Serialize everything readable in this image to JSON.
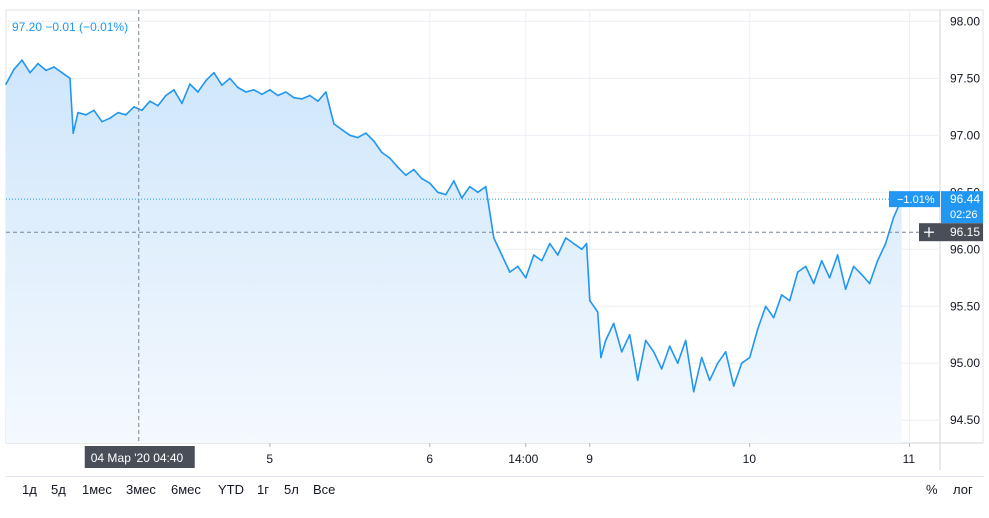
{
  "header": {
    "readout": "97.20 −0.01 (−0.01%)"
  },
  "colors": {
    "line": "#2196f3",
    "fill_top": "#cfe6fb",
    "fill_bottom": "#f4f9fe",
    "grid": "#eceff4",
    "axis_text": "#131722",
    "last_badge": "#2196f3",
    "cursor_badge": "#4a4e59"
  },
  "range_buttons": [
    "1д",
    "5д",
    "1мес",
    "3мес",
    "6мес",
    "YTD",
    "1г",
    "5л",
    "Все"
  ],
  "right_buttons": {
    "percent": "%",
    "log": "лог"
  },
  "last_price": {
    "change": "−1.01%",
    "value": "96.44",
    "time": "02:26"
  },
  "crosshair": {
    "price_label": "96.15",
    "price": 96.15,
    "time_label": "04 Мар '20   04:40",
    "x_value": 0.83
  },
  "chart_data": {
    "type": "area",
    "title": "",
    "xlabel": "",
    "ylabel": "",
    "ylim": [
      94.3,
      98.1
    ],
    "xlim": [
      0,
      5.84
    ],
    "y_ticks": [
      98.0,
      97.5,
      97.0,
      96.5,
      96.0,
      95.5,
      95.0,
      94.5
    ],
    "y_tick_labels": [
      "98.00",
      "97.50",
      "97.00",
      "96.50",
      "96.00",
      "95.50",
      "95.00",
      "94.50"
    ],
    "x_ticks": [
      1.65,
      2.65,
      3.25,
      3.65,
      4.65,
      5.65
    ],
    "x_tick_labels": [
      "5",
      "6",
      "14:00",
      "9",
      "10",
      "11"
    ],
    "grid": true,
    "series": [
      {
        "x": [
          0.0,
          0.05,
          0.1,
          0.15,
          0.2,
          0.25,
          0.3,
          0.35,
          0.4,
          0.42,
          0.45,
          0.5,
          0.55,
          0.6,
          0.65,
          0.7,
          0.75,
          0.8,
          0.85,
          0.9,
          0.95,
          1.0,
          1.05,
          1.1,
          1.15,
          1.2,
          1.25,
          1.3,
          1.35,
          1.4,
          1.45,
          1.5,
          1.55,
          1.6,
          1.65,
          1.7,
          1.75,
          1.8,
          1.85,
          1.9,
          1.95,
          2.0,
          2.05,
          2.1,
          2.15,
          2.2,
          2.25,
          2.3,
          2.35,
          2.4,
          2.45,
          2.5,
          2.55,
          2.6,
          2.65,
          2.7,
          2.75,
          2.8,
          2.85,
          2.9,
          2.95,
          3.0,
          3.05,
          3.1,
          3.15,
          3.2,
          3.25,
          3.3,
          3.35,
          3.4,
          3.45,
          3.5,
          3.55,
          3.6,
          3.63,
          3.65,
          3.7,
          3.72,
          3.75,
          3.8,
          3.85,
          3.9,
          3.95,
          4.0,
          4.05,
          4.1,
          4.15,
          4.2,
          4.25,
          4.3,
          4.35,
          4.4,
          4.45,
          4.5,
          4.55,
          4.6,
          4.65,
          4.7,
          4.75,
          4.8,
          4.85,
          4.9,
          4.95,
          5.0,
          5.05,
          5.1,
          5.15,
          5.2,
          5.25,
          5.3,
          5.35,
          5.4,
          5.45,
          5.5,
          5.55,
          5.6
        ],
        "y": [
          97.45,
          97.58,
          97.66,
          97.55,
          97.63,
          97.57,
          97.6,
          97.55,
          97.5,
          97.02,
          97.2,
          97.18,
          97.22,
          97.12,
          97.15,
          97.2,
          97.18,
          97.25,
          97.22,
          97.3,
          97.26,
          97.35,
          97.4,
          97.28,
          97.45,
          97.38,
          97.48,
          97.55,
          97.44,
          97.5,
          97.42,
          97.38,
          97.4,
          97.36,
          97.4,
          97.35,
          97.38,
          97.33,
          97.32,
          97.35,
          97.3,
          97.38,
          97.1,
          97.05,
          97.0,
          96.98,
          97.02,
          96.95,
          96.85,
          96.8,
          96.72,
          96.65,
          96.7,
          96.62,
          96.58,
          96.5,
          96.48,
          96.6,
          96.45,
          96.55,
          96.5,
          96.55,
          96.1,
          95.95,
          95.8,
          95.85,
          95.75,
          95.95,
          95.9,
          96.05,
          95.95,
          96.1,
          96.05,
          96.0,
          96.05,
          95.55,
          95.45,
          95.05,
          95.2,
          95.35,
          95.1,
          95.25,
          94.85,
          95.2,
          95.1,
          94.95,
          95.15,
          95.0,
          95.2,
          94.75,
          95.05,
          94.85,
          95.0,
          95.1,
          94.8,
          95.0,
          95.05,
          95.3,
          95.5,
          95.4,
          95.6,
          95.55,
          95.8,
          95.85,
          95.7,
          95.9,
          95.75,
          95.95,
          95.65,
          95.85,
          95.78,
          95.7,
          95.9,
          96.05,
          96.28,
          96.44
        ]
      }
    ]
  }
}
